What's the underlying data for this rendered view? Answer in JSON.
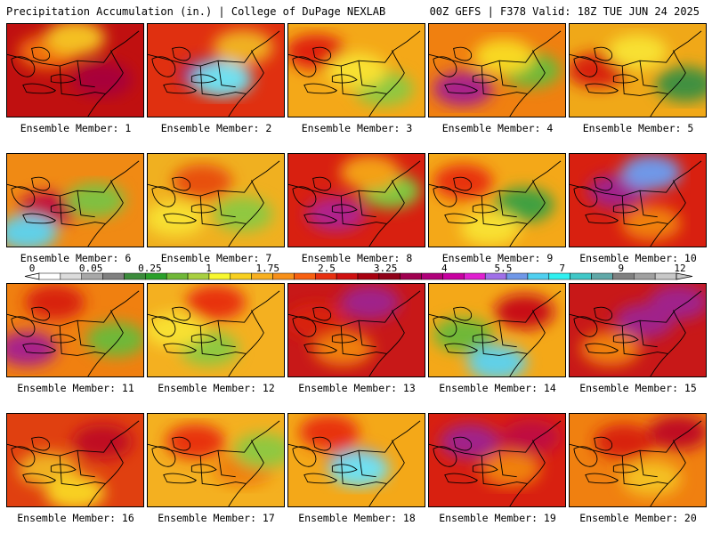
{
  "header": {
    "left": "Precipitation Accumulation (in.) | College of DuPage NEXLAB",
    "right": "00Z GEFS | F378 Valid: 18Z TUE JUN 24 2025"
  },
  "member_label_prefix": "Ensemble Member:",
  "members": [
    {
      "id": "1",
      "label": "Ensemble Member: 1",
      "base": "#c01010",
      "blobs": [
        [
          "#f07010",
          0.3,
          0.3
        ],
        [
          "#a8003a",
          0.7,
          0.6
        ],
        [
          "#f4c020",
          0.5,
          0.15
        ]
      ]
    },
    {
      "id": "2",
      "label": "Ensemble Member: 2",
      "base": "#e03010",
      "blobs": [
        [
          "#a0208a",
          0.45,
          0.55
        ],
        [
          "#70e0f0",
          0.55,
          0.6
        ],
        [
          "#f0b020",
          0.7,
          0.25
        ]
      ]
    },
    {
      "id": "3",
      "label": "Ensemble Member: 3",
      "base": "#f4a818",
      "blobs": [
        [
          "#e02010",
          0.2,
          0.3
        ],
        [
          "#90c840",
          0.7,
          0.7
        ],
        [
          "#f8e030",
          0.5,
          0.5
        ]
      ]
    },
    {
      "id": "4",
      "label": "Ensemble Member: 4",
      "base": "#f08010",
      "blobs": [
        [
          "#a8208a",
          0.25,
          0.7
        ],
        [
          "#70b838",
          0.75,
          0.5
        ],
        [
          "#f8d820",
          0.55,
          0.35
        ]
      ]
    },
    {
      "id": "5",
      "label": "Ensemble Member: 5",
      "base": "#f0a818",
      "blobs": [
        [
          "#409040",
          0.85,
          0.65
        ],
        [
          "#d82010",
          0.2,
          0.5
        ],
        [
          "#f8e030",
          0.5,
          0.3
        ]
      ]
    },
    {
      "id": "6",
      "label": "Ensemble Member: 6",
      "base": "#f08a14",
      "blobs": [
        [
          "#c01040",
          0.3,
          0.6
        ],
        [
          "#60d0e8",
          0.15,
          0.85
        ],
        [
          "#80c040",
          0.65,
          0.5
        ]
      ]
    },
    {
      "id": "7",
      "label": "Ensemble Member: 7",
      "base": "#f0b020",
      "blobs": [
        [
          "#e85010",
          0.4,
          0.3
        ],
        [
          "#90c840",
          0.7,
          0.65
        ],
        [
          "#f8e030",
          0.2,
          0.7
        ]
      ]
    },
    {
      "id": "8",
      "label": "Ensemble Member: 8",
      "base": "#d82010",
      "blobs": [
        [
          "#b0208c",
          0.35,
          0.65
        ],
        [
          "#80c840",
          0.75,
          0.4
        ],
        [
          "#f4a018",
          0.6,
          0.2
        ]
      ]
    },
    {
      "id": "9",
      "label": "Ensemble Member: 9",
      "base": "#f4a818",
      "blobs": [
        [
          "#40a040",
          0.7,
          0.55
        ],
        [
          "#e83010",
          0.25,
          0.3
        ],
        [
          "#f8e030",
          0.45,
          0.8
        ]
      ]
    },
    {
      "id": "10",
      "label": "Ensemble Member: 10",
      "base": "#d82010",
      "blobs": [
        [
          "#a0208a",
          0.35,
          0.4
        ],
        [
          "#7098e8",
          0.6,
          0.2
        ],
        [
          "#f08010",
          0.6,
          0.75
        ]
      ]
    },
    {
      "id": "11",
      "label": "Ensemble Member: 11",
      "base": "#f08010",
      "blobs": [
        [
          "#a8208a",
          0.15,
          0.7
        ],
        [
          "#70b838",
          0.8,
          0.6
        ],
        [
          "#d82010",
          0.35,
          0.2
        ]
      ]
    },
    {
      "id": "12",
      "label": "Ensemble Member: 12",
      "base": "#f4b020",
      "blobs": [
        [
          "#e83010",
          0.5,
          0.2
        ],
        [
          "#90c840",
          0.45,
          0.7
        ],
        [
          "#f8e030",
          0.2,
          0.5
        ]
      ]
    },
    {
      "id": "13",
      "label": "Ensemble Member: 13",
      "base": "#c81818",
      "blobs": [
        [
          "#a0208a",
          0.6,
          0.2
        ],
        [
          "#f08010",
          0.4,
          0.7
        ],
        [
          "#d82010",
          0.2,
          0.4
        ]
      ]
    },
    {
      "id": "14",
      "label": "Ensemble Member: 14",
      "base": "#f4a818",
      "blobs": [
        [
          "#70b838",
          0.25,
          0.55
        ],
        [
          "#c81018",
          0.7,
          0.3
        ],
        [
          "#60d0e8",
          0.5,
          0.85
        ]
      ]
    },
    {
      "id": "15",
      "label": "Ensemble Member: 15",
      "base": "#c81818",
      "blobs": [
        [
          "#a0208a",
          0.55,
          0.4
        ],
        [
          "#f08010",
          0.3,
          0.7
        ],
        [
          "#a0208a",
          0.8,
          0.2
        ]
      ]
    },
    {
      "id": "16",
      "label": "Ensemble Member: 16",
      "base": "#e04010",
      "blobs": [
        [
          "#f0b020",
          0.3,
          0.6
        ],
        [
          "#c01020",
          0.7,
          0.3
        ],
        [
          "#f8d020",
          0.5,
          0.85
        ]
      ]
    },
    {
      "id": "17",
      "label": "Ensemble Member: 17",
      "base": "#f4b020",
      "blobs": [
        [
          "#e83010",
          0.35,
          0.3
        ],
        [
          "#f08010",
          0.7,
          0.6
        ],
        [
          "#90c840",
          0.85,
          0.4
        ]
      ]
    },
    {
      "id": "18",
      "label": "Ensemble Member: 18",
      "base": "#f4a818",
      "blobs": [
        [
          "#b0208c",
          0.5,
          0.55
        ],
        [
          "#70e0f0",
          0.52,
          0.6
        ],
        [
          "#e83010",
          0.3,
          0.2
        ]
      ]
    },
    {
      "id": "19",
      "label": "Ensemble Member: 19",
      "base": "#d82010",
      "blobs": [
        [
          "#a0208a",
          0.3,
          0.3
        ],
        [
          "#f08010",
          0.6,
          0.6
        ],
        [
          "#c01040",
          0.75,
          0.25
        ]
      ]
    },
    {
      "id": "20",
      "label": "Ensemble Member: 20",
      "base": "#f08010",
      "blobs": [
        [
          "#d82010",
          0.4,
          0.3
        ],
        [
          "#f4c020",
          0.6,
          0.7
        ],
        [
          "#c01020",
          0.8,
          0.2
        ]
      ]
    }
  ],
  "colorbar": {
    "tick_labels": [
      "0",
      "0.05",
      "0.25",
      "1",
      "1.75",
      "2.5",
      "3.25",
      "4",
      "5.5",
      "7",
      "9",
      "12"
    ],
    "colors": [
      "#ffffff",
      "#dcdcdc",
      "#a8a8a8",
      "#808080",
      "#3c8c3c",
      "#2aa02a",
      "#70b838",
      "#a8d040",
      "#f8f830",
      "#f8d020",
      "#f8b020",
      "#f89018",
      "#f86010",
      "#e83010",
      "#d01010",
      "#a80010",
      "#900018",
      "#a00050",
      "#b0007a",
      "#c800a0",
      "#e020d0",
      "#a070e8",
      "#7098e8",
      "#50d0f0",
      "#30f0f0",
      "#40c8c8",
      "#60a8a8",
      "#808080",
      "#a0a0a0",
      "#c8c8c8"
    ]
  }
}
